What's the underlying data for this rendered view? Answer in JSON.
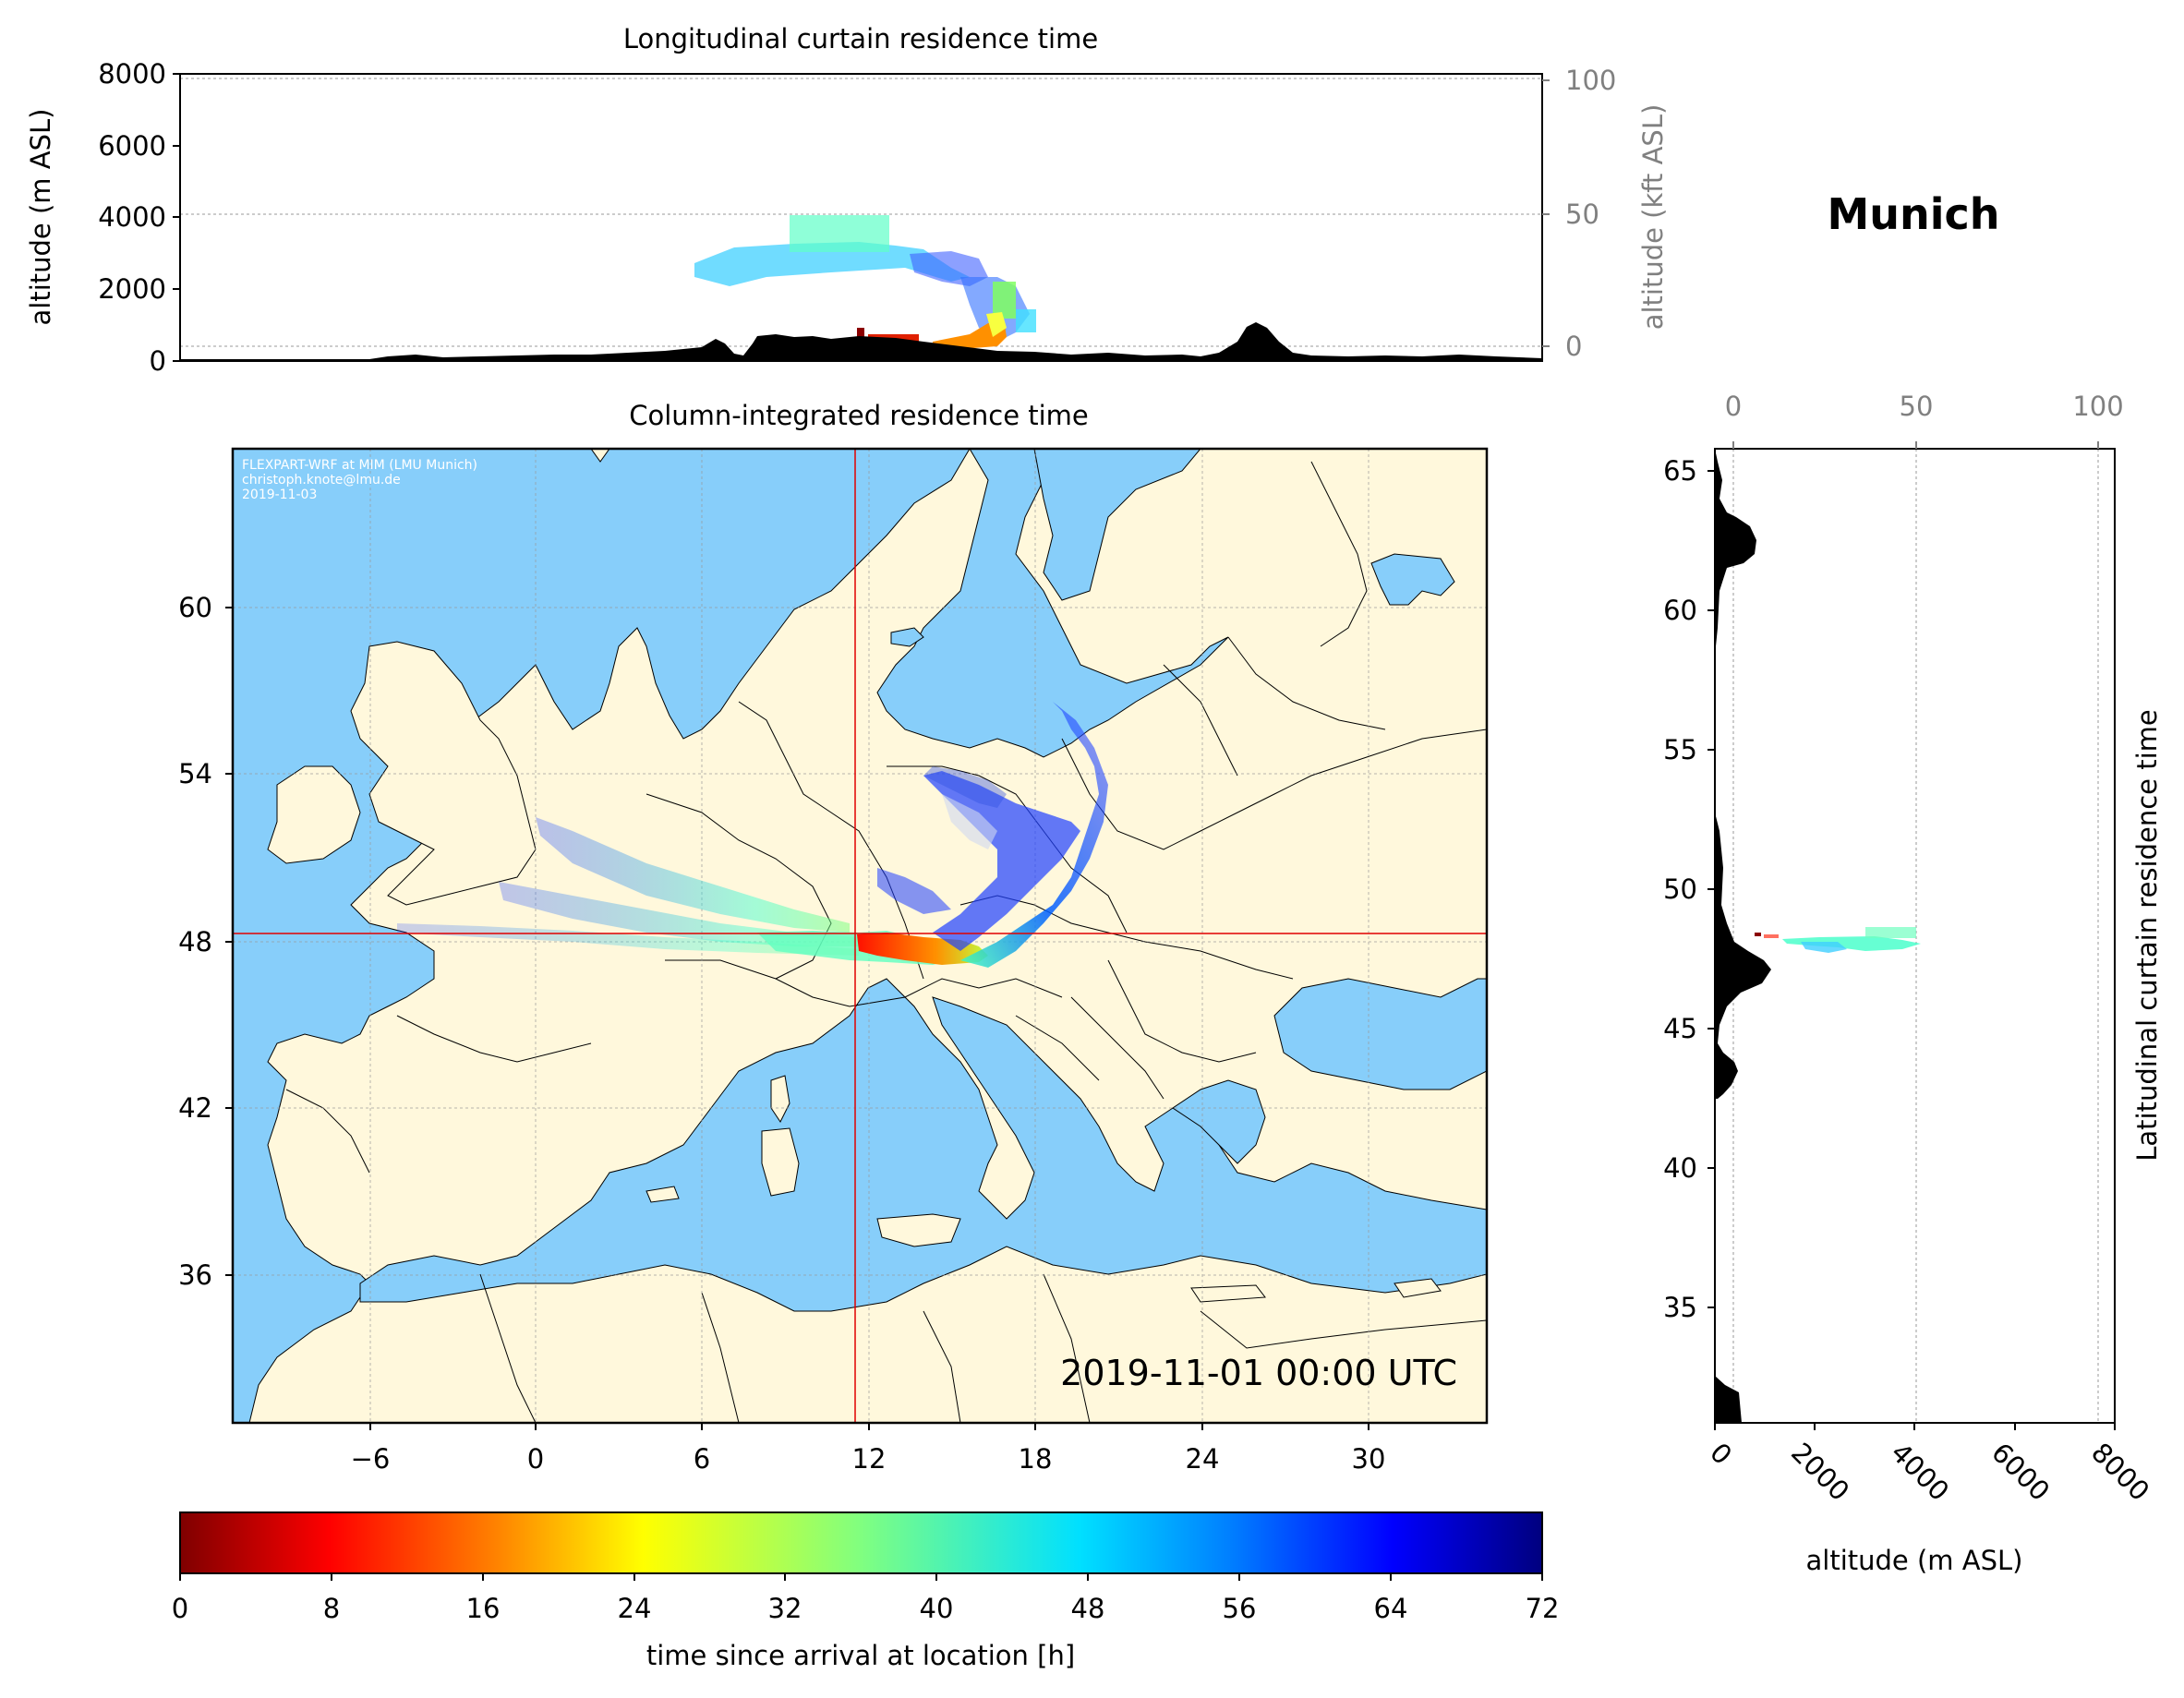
{
  "figure": {
    "location_title": "Munich",
    "watermark": [
      "FLEXPART-WRF at MIM (LMU Munich)",
      "christoph.knote@lmu.de",
      "2019-11-03"
    ],
    "timestamp": "2019-11-01 00:00 UTC",
    "colors": {
      "land": "#fff8dc",
      "sea": "#87cefa",
      "terrain": "#000000",
      "crosshair": "#e00000"
    }
  },
  "chart_data": [
    {
      "id": "longitudinal_curtain",
      "type": "heatmap",
      "title": "Longitudinal curtain residence time",
      "ylabel": "altitude (m ASL)",
      "y2label": "altitude (kft ASL)",
      "ylim": [
        0,
        8000
      ],
      "yticks": [
        "0",
        "2000",
        "4000",
        "6000",
        "8000"
      ],
      "y2lim": [
        0,
        100
      ],
      "y2ticks": [
        "0",
        "50",
        "100"
      ],
      "xlim": [
        -12,
        36
      ],
      "grid": true
    },
    {
      "id": "column_integrated",
      "type": "heatmap",
      "title": "Column-integrated residence time",
      "xlim": [
        -11,
        34
      ],
      "ylim": [
        31,
        66
      ],
      "xticks": [
        "−6",
        "0",
        "6",
        "12",
        "18",
        "24",
        "30"
      ],
      "yticks": [
        "36",
        "42",
        "48",
        "54",
        "60"
      ],
      "release_point": {
        "lon": 11.6,
        "lat": 48.15
      },
      "grid": true
    },
    {
      "id": "latitudinal_curtain",
      "type": "heatmap",
      "title": "Latitudinal curtain residence time",
      "xlabel": "altitude (m ASL)",
      "xlim": [
        0,
        8000
      ],
      "xticks": [
        "0",
        "2000",
        "4000",
        "6000",
        "8000"
      ],
      "x2lim": [
        0,
        100
      ],
      "x2ticks": [
        "0",
        "50",
        "100"
      ],
      "ylim": [
        30.8,
        65.8
      ],
      "yticks": [
        "35",
        "40",
        "45",
        "50",
        "55",
        "60",
        "65"
      ],
      "grid": true
    },
    {
      "id": "colorbar",
      "type": "heatmap",
      "label": "time since arrival at location [h]",
      "range": [
        0,
        72
      ],
      "ticks": [
        "0",
        "8",
        "16",
        "24",
        "32",
        "40",
        "48",
        "56",
        "64",
        "72"
      ],
      "colormap": "jet_r"
    }
  ]
}
